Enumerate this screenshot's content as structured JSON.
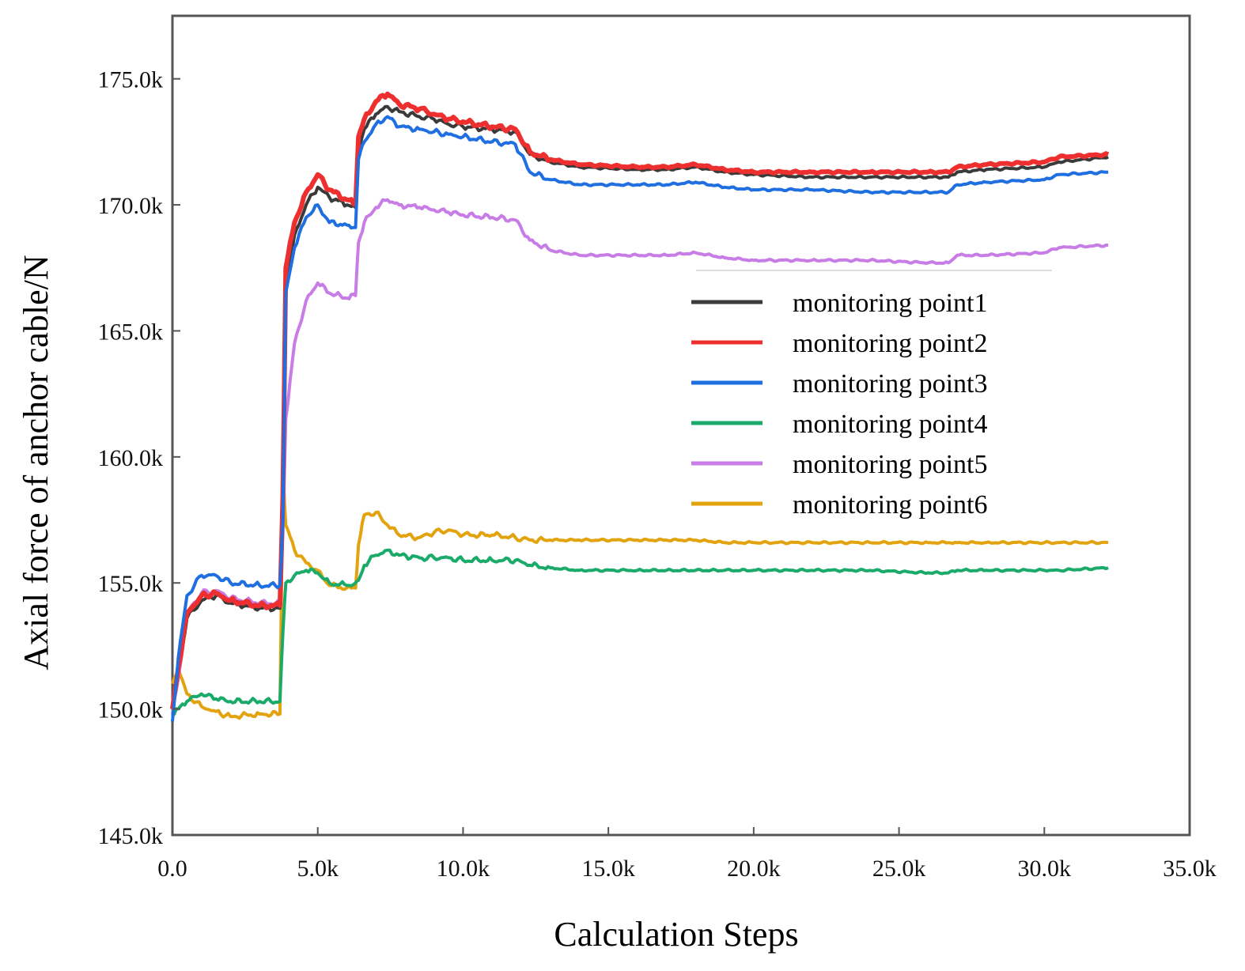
{
  "chart_data": {
    "type": "line",
    "title": "",
    "xlabel": "Calculation Steps",
    "ylabel": "Axial force of anchor cable/N",
    "xlim": [
      0,
      35000
    ],
    "ylim": [
      145000,
      177500
    ],
    "x_ticks": [
      0,
      5000,
      10000,
      15000,
      20000,
      25000,
      30000,
      35000
    ],
    "x_tick_labels": [
      "0.0",
      "5.0k",
      "10.0k",
      "15.0k",
      "20.0k",
      "25.0k",
      "30.0k",
      "35.0k"
    ],
    "y_ticks": [
      145000,
      150000,
      155000,
      160000,
      165000,
      170000,
      175000
    ],
    "y_tick_labels": [
      "145.0k",
      "150.0k",
      "155.0k",
      "160.0k",
      "165.0k",
      "170.0k",
      "175.0k"
    ],
    "grid": false,
    "legend_position": "right",
    "series": [
      {
        "name": "monitoring point1",
        "color": "#3a3a3a",
        "x": [
          0,
          200,
          500,
          1000,
          1500,
          2000,
          3000,
          3700,
          3800,
          3900,
          4200,
          4600,
          5000,
          5400,
          6000,
          6300,
          6400,
          6600,
          7000,
          7400,
          7800,
          8500,
          9000,
          9500,
          10000,
          11000,
          11800,
          12300,
          13000,
          14000,
          16000,
          17000,
          18000,
          19000,
          20000,
          22000,
          24000,
          26000,
          26700,
          27000,
          28000,
          30000,
          30500,
          32200
        ],
        "values": [
          150000,
          151500,
          153600,
          154300,
          154500,
          154200,
          154000,
          154000,
          158000,
          166500,
          168800,
          170000,
          170700,
          170300,
          170000,
          169900,
          172300,
          173000,
          173600,
          173900,
          173700,
          173500,
          173400,
          173200,
          173100,
          173000,
          172900,
          172000,
          171700,
          171500,
          171400,
          171400,
          171500,
          171300,
          171200,
          171100,
          171100,
          171100,
          171100,
          171300,
          171400,
          171500,
          171700,
          171900
        ]
      },
      {
        "name": "monitoring point2",
        "color": "#ee2f2f",
        "x": [
          0,
          200,
          500,
          1000,
          1500,
          2000,
          3000,
          3700,
          3800,
          3900,
          4200,
          4600,
          5000,
          5400,
          6000,
          6300,
          6400,
          6600,
          7000,
          7400,
          7800,
          8500,
          9000,
          9500,
          10000,
          11000,
          11800,
          12300,
          13000,
          14000,
          16000,
          17000,
          18000,
          19000,
          20000,
          22000,
          24000,
          26000,
          26700,
          27000,
          28000,
          30000,
          30500,
          32200
        ],
        "values": [
          150000,
          151600,
          153800,
          154500,
          154600,
          154300,
          154100,
          154100,
          158500,
          167500,
          169300,
          170500,
          171200,
          170600,
          170200,
          170000,
          172700,
          173400,
          174100,
          174400,
          174000,
          173800,
          173600,
          173400,
          173300,
          173100,
          173000,
          172100,
          171800,
          171600,
          171500,
          171500,
          171600,
          171400,
          171300,
          171300,
          171300,
          171300,
          171300,
          171500,
          171600,
          171700,
          171900,
          172000
        ]
      },
      {
        "name": "monitoring point3",
        "color": "#1f6fe0",
        "x": [
          0,
          200,
          500,
          1000,
          1500,
          2000,
          3000,
          3700,
          3800,
          3900,
          4200,
          4600,
          5000,
          5400,
          6000,
          6300,
          6400,
          6600,
          7000,
          7400,
          7800,
          8500,
          9000,
          9500,
          10000,
          11000,
          11800,
          12300,
          13000,
          14000,
          16000,
          17000,
          18000,
          19000,
          20000,
          22000,
          24000,
          26000,
          26700,
          27000,
          28000,
          30000,
          30500,
          32200
        ],
        "values": [
          149500,
          152000,
          154500,
          155300,
          155300,
          155000,
          154900,
          154900,
          157500,
          166500,
          168300,
          169500,
          170000,
          169300,
          169200,
          169100,
          171800,
          172500,
          173200,
          173500,
          173100,
          173000,
          172900,
          172800,
          172700,
          172500,
          172400,
          171300,
          171000,
          170800,
          170800,
          170800,
          170900,
          170700,
          170600,
          170600,
          170500,
          170500,
          170500,
          170800,
          170900,
          171000,
          171200,
          171300
        ]
      },
      {
        "name": "monitoring point4",
        "color": "#1aaa6a",
        "x": [
          0,
          200,
          500,
          1000,
          1500,
          2000,
          3000,
          3700,
          3800,
          3900,
          4200,
          4600,
          5000,
          5400,
          6000,
          6300,
          6400,
          6600,
          7000,
          7400,
          7800,
          8500,
          9000,
          9500,
          10000,
          11000,
          11800,
          12300,
          13000,
          14000,
          16000,
          17000,
          18000,
          19000,
          20000,
          22000,
          24000,
          26000,
          26700,
          27000,
          28000,
          30000,
          30500,
          32200
        ],
        "values": [
          149800,
          150000,
          150300,
          150600,
          150400,
          150300,
          150300,
          150300,
          153000,
          155000,
          155300,
          155500,
          155400,
          155000,
          154900,
          155000,
          155100,
          155700,
          156100,
          156300,
          156100,
          156000,
          156000,
          156000,
          155900,
          155900,
          155900,
          155700,
          155600,
          155500,
          155500,
          155500,
          155500,
          155500,
          155500,
          155500,
          155500,
          155400,
          155400,
          155500,
          155500,
          155500,
          155500,
          155600
        ]
      },
      {
        "name": "monitoring point5",
        "color": "#c87ce6",
        "x": [
          0,
          200,
          500,
          1000,
          1500,
          2000,
          3000,
          3700,
          3800,
          3900,
          4200,
          4600,
          5000,
          5400,
          6000,
          6300,
          6400,
          6600,
          7000,
          7400,
          7800,
          8500,
          9000,
          9500,
          10000,
          11000,
          11800,
          12300,
          13000,
          14000,
          16000,
          17000,
          18000,
          19000,
          20000,
          22000,
          24000,
          26000,
          26700,
          27000,
          28000,
          30000,
          30500,
          32200
        ],
        "values": [
          149800,
          151200,
          153800,
          154600,
          154700,
          154400,
          154200,
          154200,
          157000,
          161500,
          164500,
          166200,
          166900,
          166500,
          166300,
          166400,
          168500,
          169300,
          169900,
          170200,
          170000,
          169900,
          169800,
          169700,
          169600,
          169500,
          169400,
          168600,
          168200,
          168000,
          168000,
          168000,
          168100,
          167900,
          167800,
          167800,
          167800,
          167700,
          167700,
          168000,
          168000,
          168100,
          168300,
          168400
        ]
      },
      {
        "name": "monitoring point6",
        "color": "#e2a30f",
        "x": [
          0,
          200,
          500,
          1000,
          1500,
          2000,
          3000,
          3700,
          3800,
          3900,
          4200,
          4600,
          5000,
          5400,
          6000,
          6300,
          6400,
          6600,
          7000,
          7400,
          7800,
          8500,
          9000,
          9500,
          10000,
          11000,
          11800,
          12300,
          13000,
          14000,
          16000,
          17000,
          18000,
          19000,
          20000,
          22000,
          24000,
          26000,
          26700,
          27000,
          28000,
          30000,
          30500,
          32200
        ],
        "values": [
          151000,
          151600,
          150600,
          150100,
          149900,
          149700,
          149800,
          149800,
          159500,
          157300,
          156300,
          155800,
          155500,
          154900,
          154800,
          154800,
          156500,
          157700,
          157800,
          157300,
          156900,
          156800,
          157000,
          157100,
          156900,
          156900,
          156800,
          156700,
          156700,
          156700,
          156700,
          156700,
          156700,
          156600,
          156600,
          156600,
          156600,
          156600,
          156600,
          156600,
          156600,
          156600,
          156600,
          156600
        ]
      }
    ]
  }
}
